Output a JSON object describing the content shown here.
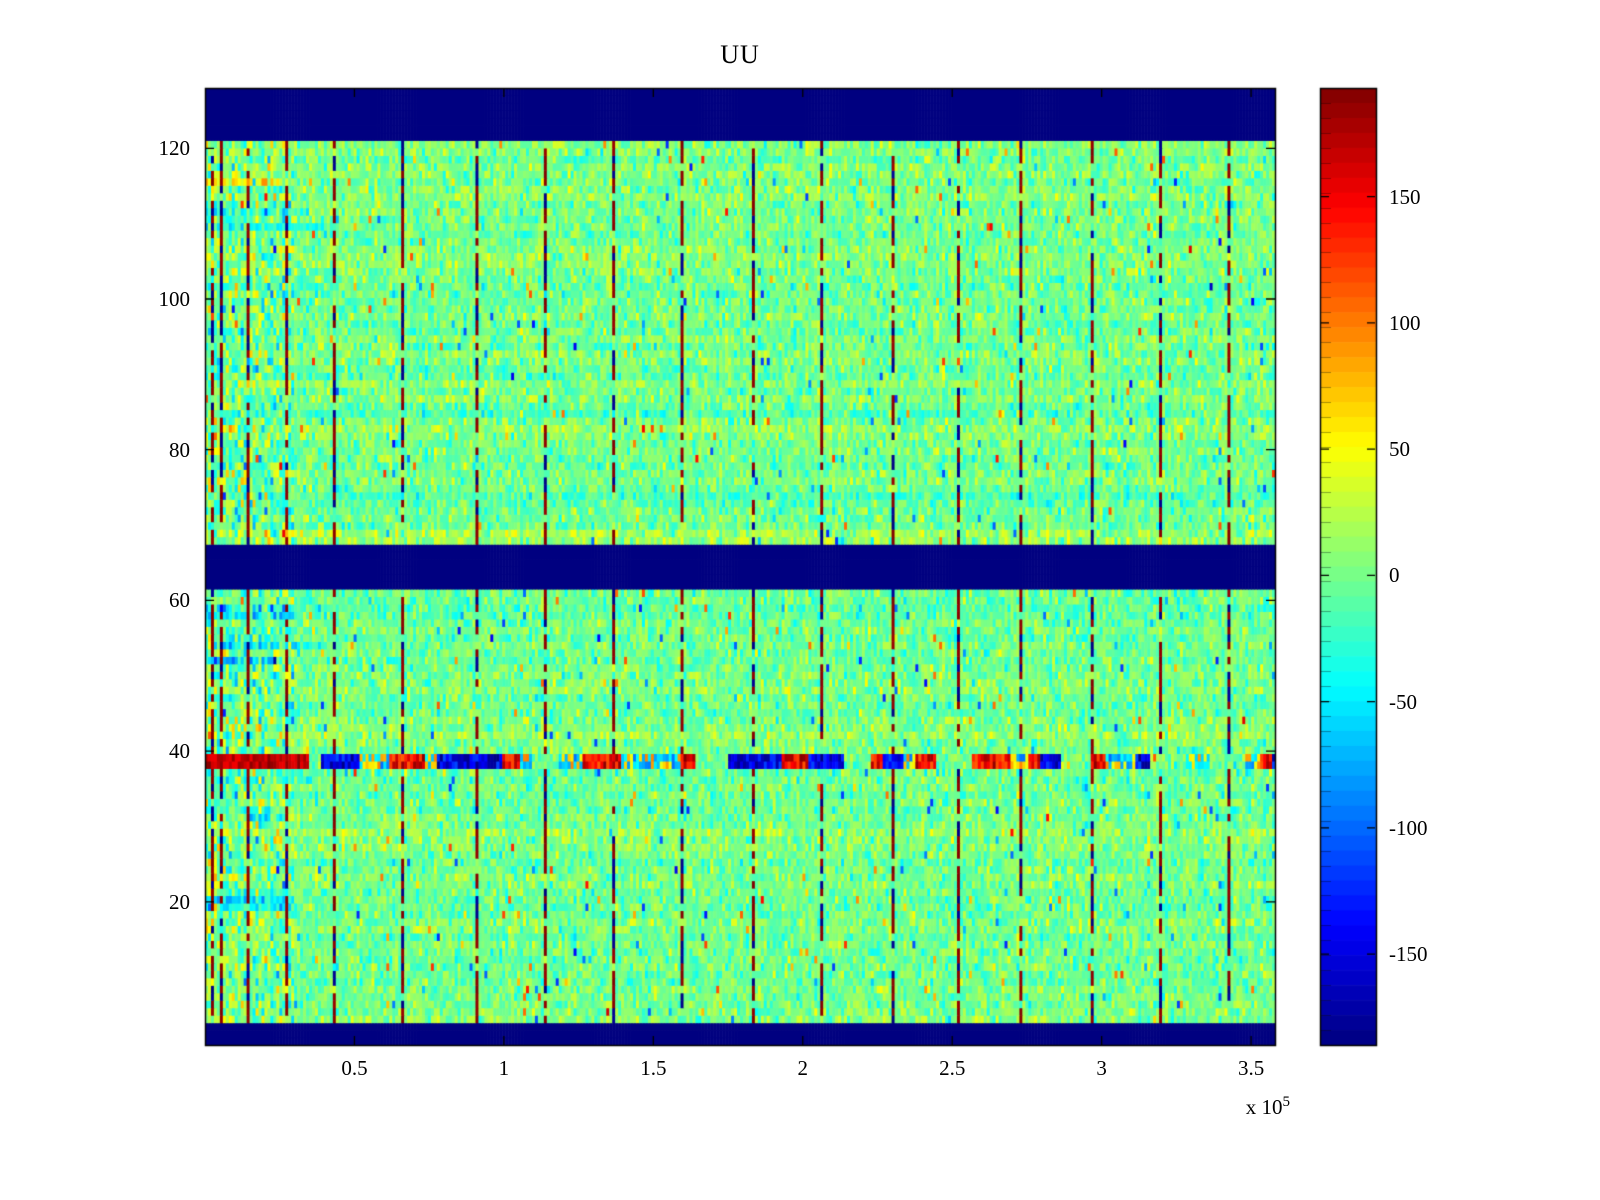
{
  "figure": {
    "background": "#ffffff",
    "axis_color": "#000000"
  },
  "chart_data": {
    "type": "heatmap",
    "title": "UU",
    "xlabel": "",
    "ylabel": "",
    "x_scale_base": "x 10",
    "x_scale_exp": "5",
    "xlim": [
      0,
      358000
    ],
    "ylim": [
      1,
      128
    ],
    "x_ticks": [
      50000,
      100000,
      150000,
      200000,
      250000,
      300000,
      350000
    ],
    "x_tick_labels": [
      "0.5",
      "1",
      "1.5",
      "2",
      "2.5",
      "3",
      "3.5"
    ],
    "y_ticks": [
      20,
      40,
      60,
      80,
      100,
      120
    ],
    "y_tick_labels": [
      "20",
      "40",
      "60",
      "80",
      "100",
      "120"
    ],
    "grid": false,
    "colormap": "jet",
    "color_axis": {
      "min": -186,
      "max": 193
    },
    "colors": {
      "band_blue": "#000080",
      "extreme_red": "#800000",
      "background": "#ffffff",
      "axis": "#000000"
    },
    "colorbar": {
      "position": "right",
      "ticks": [
        150,
        100,
        50,
        0,
        -50,
        -100,
        -150
      ],
      "tick_labels": [
        "150",
        "100",
        "50",
        "0",
        "-50",
        "-100",
        "-150"
      ],
      "steps": 64
    },
    "n_rows": 128,
    "n_cols": 360,
    "background_value_mean": 0,
    "background_value_std": 18,
    "features": {
      "solid_blue_bands_rows": [
        [
          1,
          3
        ],
        [
          62,
          67
        ],
        [
          122,
          128
        ]
      ],
      "vertical_dashed_lines_x": [
        1500,
        5300,
        14300,
        27000,
        42700,
        66000,
        90300,
        113700,
        136000,
        159300,
        182700,
        206000,
        229300,
        252000,
        272700,
        296000,
        319300,
        342000
      ],
      "horizontal_streak_rows": [
        38,
        39
      ],
      "horizontal_streak_red_x_max": 35000,
      "horizontal_streak_note": "solid strong red for x < 35000, then alternating red/blue/neutral segments across full width",
      "left_region_noisier_x_max": 30000,
      "row_accents": [
        {
          "row": 20,
          "x_max": 30000,
          "bias": -55
        },
        {
          "row": 19,
          "x_max": 30000,
          "bias": -35
        },
        {
          "row": 52,
          "x_max": 25000,
          "bias": -35
        },
        {
          "row": 54,
          "x_max": 40000,
          "bias": -35
        },
        {
          "row": 58,
          "x_max": 30000,
          "bias": -45
        },
        {
          "row": 59,
          "x_max": 30000,
          "bias": -30
        },
        {
          "row": 74,
          "x_max": 358000,
          "bias": -22
        },
        {
          "row": 110,
          "x_max": 40000,
          "bias": -40
        },
        {
          "row": 112,
          "x_max": 35000,
          "bias": -30
        },
        {
          "row": 116,
          "x_max": 30000,
          "bias": 45
        }
      ]
    }
  }
}
